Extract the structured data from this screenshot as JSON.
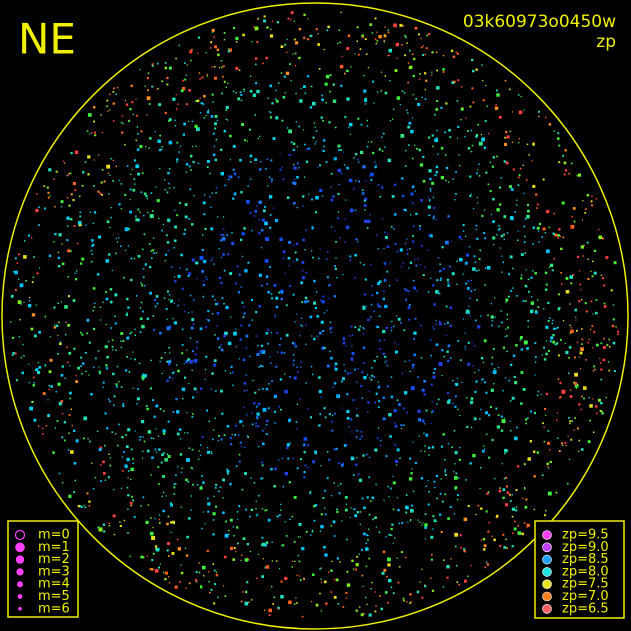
{
  "header": {
    "direction": "NE",
    "image_id": "03k60973o0450w",
    "mode": "zp"
  },
  "legend_magnitude": [
    {
      "label": "m=0",
      "size": 4.5,
      "hollow": true
    },
    {
      "label": "m=1",
      "size": 4.2,
      "hollow": false
    },
    {
      "label": "m=2",
      "size": 3.6,
      "hollow": false
    },
    {
      "label": "m=3",
      "size": 3.0,
      "hollow": false
    },
    {
      "label": "m=4",
      "size": 2.4,
      "hollow": false
    },
    {
      "label": "m=5",
      "size": 1.8,
      "hollow": false
    },
    {
      "label": "m=6",
      "size": 1.2,
      "hollow": false
    }
  ],
  "legend_zeropoint": [
    {
      "label": "zp=9.5",
      "color": "#ff40ff"
    },
    {
      "label": "zp=9.0",
      "color": "#c040ff"
    },
    {
      "label": "zp=8.5",
      "color": "#20a0ff"
    },
    {
      "label": "zp=8.0",
      "color": "#20e0e0"
    },
    {
      "label": "zp=7.5",
      "color": "#e8e020"
    },
    {
      "label": "zp=7.0",
      "color": "#ff8020"
    },
    {
      "label": "zp=6.5",
      "color": "#ff6060"
    }
  ]
}
